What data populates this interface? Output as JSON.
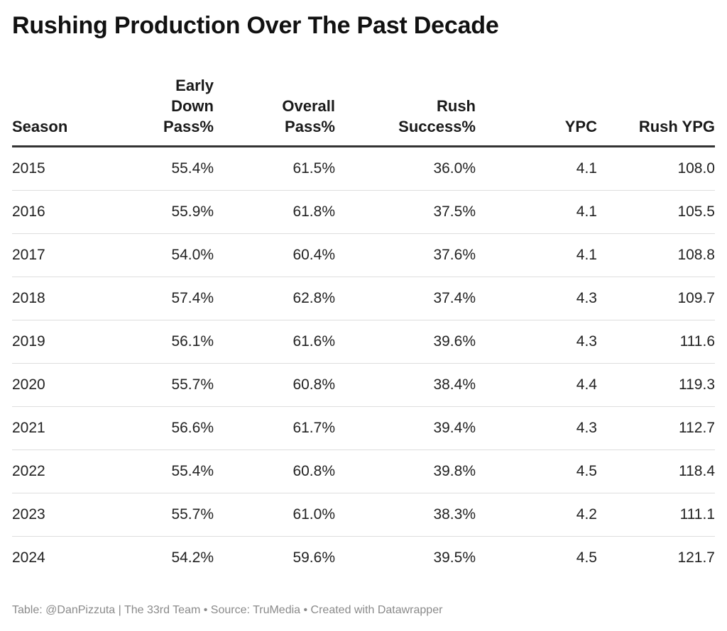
{
  "title": "Rushing Production Over The Past Decade",
  "footer": "Table: @DanPizzuta | The 33rd Team • Source: TruMedia • Created with Datawrapper",
  "chart_data": {
    "type": "table",
    "title": "Rushing Production Over The Past Decade",
    "columns": [
      {
        "key": "season",
        "label_lines": [
          "Season"
        ],
        "align": "left"
      },
      {
        "key": "early_down_pass",
        "label_lines": [
          "Early",
          "Down",
          "Pass%"
        ],
        "align": "right"
      },
      {
        "key": "overall_pass",
        "label_lines": [
          "Overall",
          "Pass%"
        ],
        "align": "right"
      },
      {
        "key": "rush_success",
        "label_lines": [
          "Rush",
          "Success%"
        ],
        "align": "right"
      },
      {
        "key": "ypc",
        "label_lines": [
          "YPC"
        ],
        "align": "right"
      },
      {
        "key": "rush_ypg",
        "label_lines": [
          "Rush YPG"
        ],
        "align": "right"
      }
    ],
    "rows": [
      [
        "2015",
        "55.4%",
        "61.5%",
        "36.0%",
        "4.1",
        "108.0"
      ],
      [
        "2016",
        "55.9%",
        "61.8%",
        "37.5%",
        "4.1",
        "105.5"
      ],
      [
        "2017",
        "54.0%",
        "60.4%",
        "37.6%",
        "4.1",
        "108.8"
      ],
      [
        "2018",
        "57.4%",
        "62.8%",
        "37.4%",
        "4.3",
        "109.7"
      ],
      [
        "2019",
        "56.1%",
        "61.6%",
        "39.6%",
        "4.3",
        "111.6"
      ],
      [
        "2020",
        "55.7%",
        "60.8%",
        "38.4%",
        "4.4",
        "119.3"
      ],
      [
        "2021",
        "56.6%",
        "61.7%",
        "39.4%",
        "4.3",
        "112.7"
      ],
      [
        "2022",
        "55.4%",
        "60.8%",
        "39.8%",
        "4.5",
        "118.4"
      ],
      [
        "2023",
        "55.7%",
        "61.0%",
        "38.3%",
        "4.2",
        "111.1"
      ],
      [
        "2024",
        "54.2%",
        "59.6%",
        "39.5%",
        "4.5",
        "121.7"
      ]
    ]
  }
}
